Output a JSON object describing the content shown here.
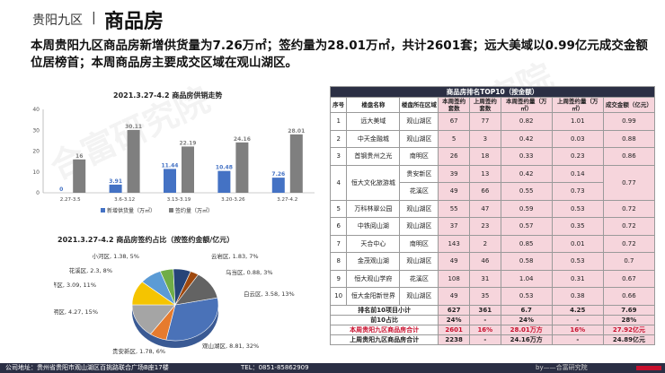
{
  "header": {
    "region": "贵阳九区",
    "separator": "|",
    "title": "商品房"
  },
  "summary": "本周贵阳九区商品房新增供货量为7.26万㎡；签约量为28.01万㎡，共计2601套；远大美域以0.99亿元成交金额位居榜首；本周商品房主要成交区域在观山湖区。",
  "watermark": "合富研究院",
  "footer": {
    "address": "公司地址：贵州省贵阳市观山湖区百挑路联合广场B座17楼",
    "tel": "TEL：0851-85862909",
    "brand": "by——合富研究院"
  },
  "colors": {
    "supply": "#4472c4",
    "signed": "#7f7f7f",
    "pink": "#f6d5dc",
    "dark": "#2b2f44",
    "red": "#c8102e"
  },
  "chart_data": [
    {
      "type": "bar",
      "title": "2021.3.27-4.2   商品房供销走势",
      "categories": [
        "2.27-3.5",
        "3.6-3.12",
        "3.13-3.19",
        "3.20-3.26",
        "3.27-4.2"
      ],
      "series": [
        {
          "name": "新增供货量（万㎡）",
          "values": [
            0,
            3.91,
            11.44,
            10.48,
            7.26
          ]
        },
        {
          "name": "签约量（万㎡）",
          "values": [
            16,
            30.11,
            22.19,
            24.16,
            28.01
          ]
        }
      ],
      "ylim": [
        0,
        40
      ],
      "yticks": [
        0,
        10,
        20,
        30,
        40
      ],
      "grid": false,
      "legend": "bottom"
    },
    {
      "type": "pie",
      "title": "2021.3.27-4.2   商品房签约占比（按签约金额/亿元）",
      "slices": [
        {
          "label": "观山湖区",
          "value": 8.81,
          "pct": "32%",
          "color": "#4a72b8"
        },
        {
          "label": "贵安新区",
          "value": 1.78,
          "pct": "6%",
          "color": "#e67b2e"
        },
        {
          "label": "南明区",
          "value": 4.27,
          "pct": "15%",
          "color": "#a5a5a5"
        },
        {
          "label": "双龙经济区",
          "value": 3.09,
          "pct": "11%",
          "color": "#f5c400"
        },
        {
          "label": "花溪区",
          "value": 2.3,
          "pct": "8%",
          "color": "#5b9bd5"
        },
        {
          "label": "小河区",
          "value": 1.38,
          "pct": "5%",
          "color": "#70ad47"
        },
        {
          "label": "云岩区",
          "value": 1.83,
          "pct": "7%",
          "color": "#264478"
        },
        {
          "label": "乌当区",
          "value": 0.88,
          "pct": "3%",
          "color": "#9e480e"
        },
        {
          "label": "白云区",
          "value": 3.58,
          "pct": "13%",
          "color": "#636363"
        }
      ]
    },
    {
      "type": "table",
      "title": "商品房排名TOP10（按金额）",
      "columns": [
        "序号",
        "楼盘名称",
        "楼盘所在区域",
        "本周签约套数",
        "上周签约套数",
        "本周签约量（万㎡）",
        "上周签约量（万㎡）",
        "成交金额（亿元）"
      ],
      "rows": [
        [
          "1",
          "远大美域",
          "观山湖区",
          "67",
          "77",
          "0.82",
          "1.01",
          "0.99"
        ],
        [
          "2",
          "中天金融城",
          "观山湖区",
          "5",
          "3",
          "0.42",
          "0.03",
          "0.88"
        ],
        [
          "3",
          "首钢贵州之光",
          "南明区",
          "26",
          "18",
          "0.33",
          "0.23",
          "0.86"
        ],
        [
          "4a",
          "恒大文化旅游城",
          "贵安新区",
          "39",
          "13",
          "0.42",
          "0.14",
          "0.77"
        ],
        [
          "4b",
          "",
          "花溪区",
          "49",
          "66",
          "0.55",
          "0.73",
          ""
        ],
        [
          "5",
          "万科林翠公园",
          "观山湖区",
          "55",
          "47",
          "0.59",
          "0.53",
          "0.72"
        ],
        [
          "6",
          "中铁阅山湖",
          "观山湖区",
          "37",
          "23",
          "0.57",
          "0.35",
          "0.72"
        ],
        [
          "7",
          "天合中心",
          "南明区",
          "143",
          "2",
          "0.85",
          "0.01",
          "0.72"
        ],
        [
          "8",
          "金茂观山湖",
          "观山湖区",
          "49",
          "46",
          "0.58",
          "0.53",
          "0.7"
        ],
        [
          "9",
          "恒大观山学府",
          "花溪区",
          "108",
          "31",
          "1.04",
          "0.31",
          "0.67"
        ],
        [
          "10",
          "恒大金阳新世界",
          "观山湖区",
          "49",
          "35",
          "0.53",
          "0.38",
          "0.66"
        ]
      ],
      "footer_rows": [
        [
          "排名前10项目小计",
          "627",
          "361",
          "6.7",
          "4.25",
          "7.69"
        ],
        [
          "前10占比",
          "24%",
          "-",
          "24%",
          "-",
          "28%"
        ],
        [
          "本周贵阳九区商品房合计",
          "2601",
          "16%",
          "28.01万方",
          "16%",
          "27.92亿元"
        ],
        [
          "上周贵阳九区商品房合计",
          "2238",
          "-",
          "24.16万方",
          "-",
          "24.89亿元"
        ]
      ]
    }
  ]
}
